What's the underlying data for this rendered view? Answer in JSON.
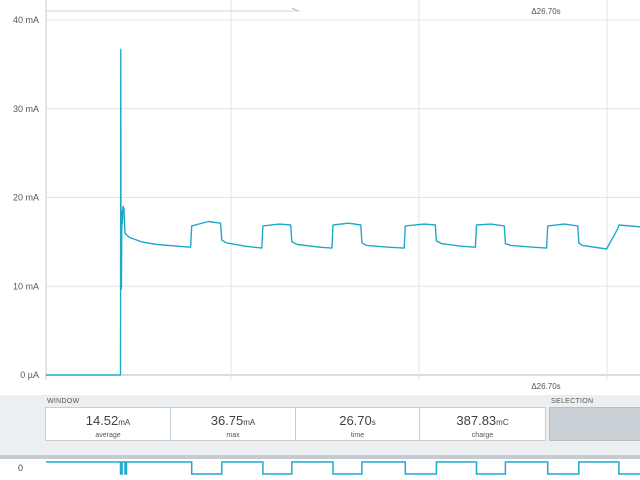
{
  "chart_data": {
    "type": "line",
    "y_ticks": [
      {
        "value": 40,
        "label": "40 mA"
      },
      {
        "value": 30,
        "label": "30 mA"
      },
      {
        "value": 20,
        "label": "20 mA"
      },
      {
        "value": 10,
        "label": "10 mA"
      },
      {
        "value": 0,
        "label": "0 µA"
      }
    ],
    "ylim": [
      0,
      40
    ],
    "xlim": [
      0,
      26.7
    ],
    "grid": true,
    "window_delta_top": "Δ26.70s",
    "window_delta_bottom": "Δ26.70s",
    "series": [
      {
        "color": "#1fa9c9",
        "x": [
          0,
          3.35,
          3.36,
          3.37,
          3.39,
          3.41,
          3.43,
          3.46,
          3.5,
          3.55,
          3.62,
          3.75,
          4.3,
          5.0,
          6.0,
          6.5,
          6.55,
          7.3,
          7.85,
          7.9,
          8.1,
          9.0,
          9.7,
          9.75,
          10.5,
          11.0,
          11.05,
          11.3,
          12.3,
          12.85,
          12.9,
          13.6,
          14.15,
          14.2,
          14.4,
          15.4,
          16.1,
          16.15,
          17.0,
          17.5,
          17.55,
          17.8,
          18.7,
          19.3,
          19.35,
          20.0,
          20.6,
          20.65,
          20.9,
          21.9,
          22.5,
          22.55,
          23.3,
          23.9,
          23.95,
          24.1,
          25.2,
          25.7,
          25.75,
          26.7
        ],
        "y": [
          0,
          0,
          36.7,
          13.0,
          9.7,
          18.5,
          17.0,
          19.0,
          18.8,
          16.0,
          15.8,
          15.5,
          15.0,
          14.7,
          14.5,
          14.4,
          16.8,
          17.3,
          17.1,
          15.2,
          14.9,
          14.5,
          14.3,
          16.8,
          17.0,
          16.9,
          15.0,
          14.7,
          14.4,
          14.3,
          16.9,
          17.1,
          16.9,
          14.9,
          14.6,
          14.4,
          14.3,
          16.8,
          17.0,
          16.9,
          15.1,
          14.8,
          14.5,
          14.4,
          16.9,
          17.0,
          16.8,
          14.8,
          14.6,
          14.4,
          14.3,
          16.8,
          17.0,
          16.8,
          14.9,
          14.6,
          14.2,
          16.5,
          16.9,
          16.7
        ]
      }
    ]
  },
  "stats": {
    "window_label": "WINDOW",
    "selection_label": "SELECTION",
    "items": [
      {
        "value": "14.52",
        "unit": "mA",
        "label": "average"
      },
      {
        "value": "36.75",
        "unit": "mA",
        "label": "max"
      },
      {
        "value": "26.70",
        "unit": "s",
        "label": "time"
      },
      {
        "value": "387.83",
        "unit": "mC",
        "label": "charge"
      }
    ]
  },
  "digital_channel": {
    "label": "0",
    "color": "#1fa9c9",
    "toggles_s": [
      3.35,
      3.42,
      3.55,
      3.62,
      6.55,
      7.9,
      9.75,
      11.05,
      12.9,
      14.2,
      16.15,
      17.55,
      19.35,
      20.65,
      22.55,
      23.95,
      25.75
    ]
  }
}
